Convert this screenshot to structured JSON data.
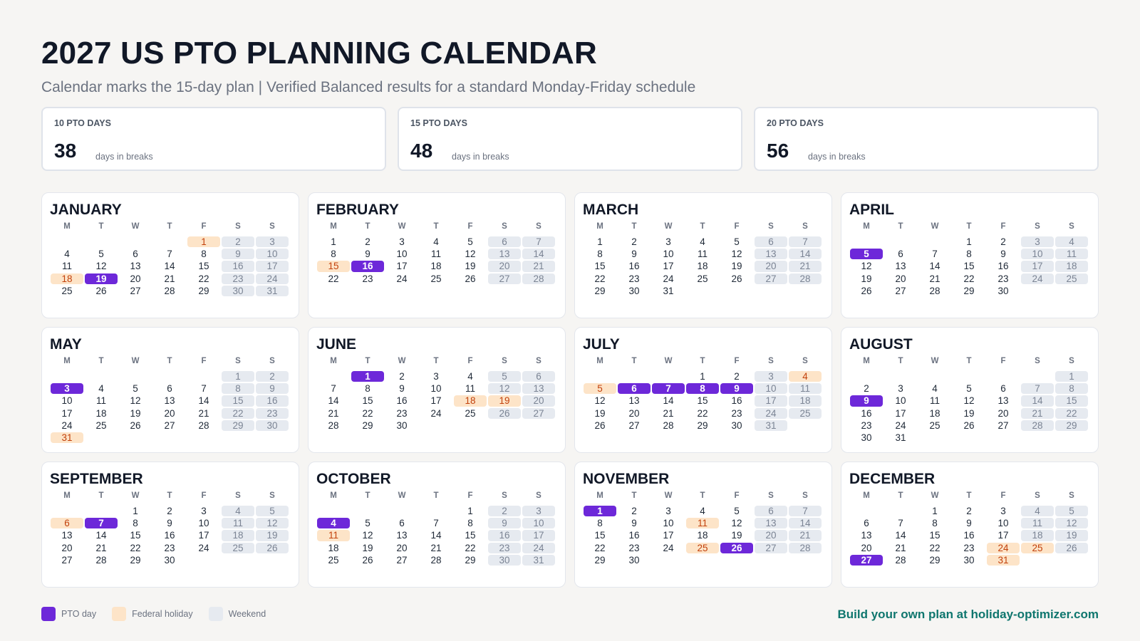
{
  "title": "2027 US PTO PLANNING CALENDAR",
  "subtitle": "Calendar marks the 15-day plan | Verified Balanced results for a standard Monday-Friday schedule",
  "summary": [
    {
      "label": "10 PTO DAYS",
      "value": "38",
      "unit": "days in breaks"
    },
    {
      "label": "15 PTO DAYS",
      "value": "48",
      "unit": "days in breaks"
    },
    {
      "label": "20 PTO DAYS",
      "value": "56",
      "unit": "days in breaks"
    }
  ],
  "weekday_headers": [
    "M",
    "T",
    "W",
    "T",
    "F",
    "S",
    "S"
  ],
  "colors": {
    "pto": "#6d28d9",
    "holiday": "#fde4c8",
    "weekend": "#e6eaf0",
    "cta": "#0f766e"
  },
  "months": [
    {
      "name": "JANUARY",
      "first_weekday": 4,
      "days": 31,
      "pto": [
        19
      ],
      "holidays": [
        1,
        18
      ]
    },
    {
      "name": "FEBRUARY",
      "first_weekday": 0,
      "days": 28,
      "pto": [
        16
      ],
      "holidays": [
        15
      ]
    },
    {
      "name": "MARCH",
      "first_weekday": 0,
      "days": 31,
      "pto": [],
      "holidays": []
    },
    {
      "name": "APRIL",
      "first_weekday": 3,
      "days": 30,
      "pto": [
        5
      ],
      "holidays": []
    },
    {
      "name": "MAY",
      "first_weekday": 5,
      "days": 31,
      "pto": [
        3
      ],
      "holidays": [
        31
      ]
    },
    {
      "name": "JUNE",
      "first_weekday": 1,
      "days": 30,
      "pto": [
        1
      ],
      "holidays": [
        18,
        19
      ]
    },
    {
      "name": "JULY",
      "first_weekday": 3,
      "days": 31,
      "pto": [
        6,
        7,
        8,
        9
      ],
      "holidays": [
        4,
        5
      ]
    },
    {
      "name": "AUGUST",
      "first_weekday": 6,
      "days": 31,
      "pto": [
        9
      ],
      "holidays": []
    },
    {
      "name": "SEPTEMBER",
      "first_weekday": 2,
      "days": 30,
      "pto": [
        7
      ],
      "holidays": [
        6
      ]
    },
    {
      "name": "OCTOBER",
      "first_weekday": 4,
      "days": 31,
      "pto": [
        4
      ],
      "holidays": [
        11
      ]
    },
    {
      "name": "NOVEMBER",
      "first_weekday": 0,
      "days": 30,
      "pto": [
        1,
        26
      ],
      "holidays": [
        11,
        25
      ]
    },
    {
      "name": "DECEMBER",
      "first_weekday": 2,
      "days": 31,
      "pto": [
        27
      ],
      "holidays": [
        24,
        25,
        31
      ]
    }
  ],
  "legend": {
    "pto": "PTO day",
    "holiday": "Federal holiday",
    "weekend": "Weekend"
  },
  "cta": "Build your own plan at holiday-optimizer.com"
}
